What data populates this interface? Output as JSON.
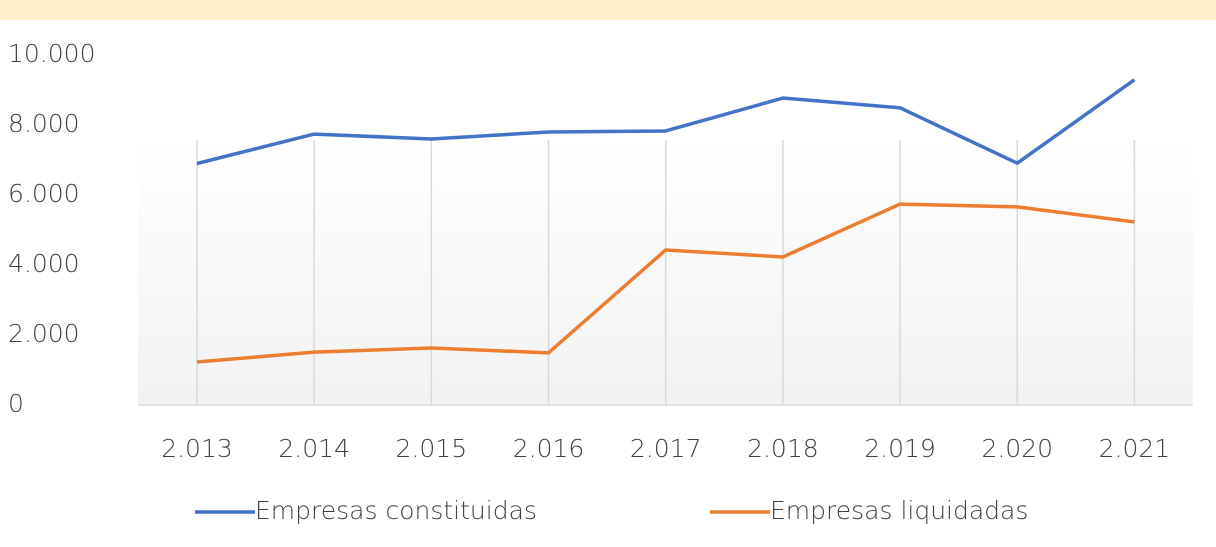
{
  "chart_data": {
    "type": "line",
    "categories": [
      "2.013",
      "2.014",
      "2.015",
      "2.016",
      "2.017",
      "2.018",
      "2.019",
      "2.020",
      "2.021"
    ],
    "series": [
      {
        "name": "Empresas constituidas",
        "color": "#4472c4",
        "values": [
          6900,
          7740,
          7600,
          7800,
          7830,
          8770,
          8490,
          6910,
          9290
        ]
      },
      {
        "name": "Empresas liquidadas",
        "color": "#ed7d31",
        "values": [
          1230,
          1510,
          1630,
          1490,
          4430,
          4230,
          5740,
          5660,
          5230
        ]
      }
    ],
    "ylim": [
      0,
      10000
    ],
    "yticks": [
      0,
      {
        "value": 2000,
        "label": "2.000"
      },
      {
        "value": 4000,
        "label": "4.000"
      },
      {
        "value": 6000,
        "label": "6.000"
      },
      {
        "value": 8000,
        "label": "8.000"
      },
      {
        "value": 10000,
        "label": "10.000"
      }
    ],
    "legend": "bottom"
  }
}
